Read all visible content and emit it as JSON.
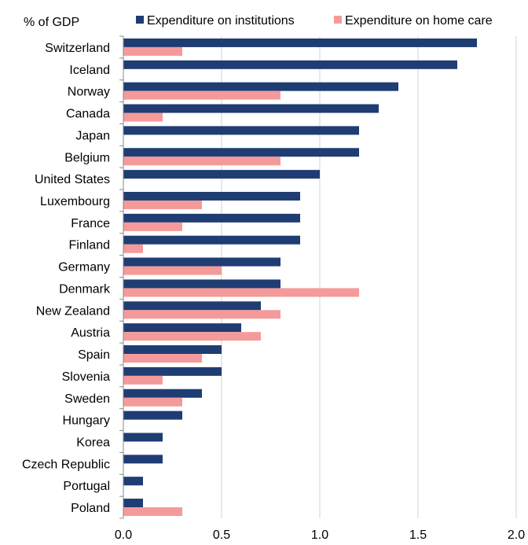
{
  "chart_data": {
    "type": "bar",
    "orientation": "horizontal",
    "ylabel": "% of GDP",
    "categories": [
      "Switzerland",
      "Iceland",
      "Norway",
      "Canada",
      "Japan",
      "Belgium",
      "United States",
      "Luxembourg",
      "France",
      "Finland",
      "Germany",
      "Denmark",
      "New Zealand",
      "Austria",
      "Spain",
      "Slovenia",
      "Sweden",
      "Hungary",
      "Korea",
      "Czech Republic",
      "Portugal",
      "Poland"
    ],
    "series": [
      {
        "name": "Expenditure on institutions",
        "color": "#1f3d73",
        "values": [
          1.8,
          1.7,
          1.4,
          1.3,
          1.2,
          1.2,
          1.0,
          0.9,
          0.9,
          0.9,
          0.8,
          0.8,
          0.7,
          0.6,
          0.5,
          0.5,
          0.4,
          0.3,
          0.2,
          0.2,
          0.1,
          0.1
        ]
      },
      {
        "name": "Expenditure on home care",
        "color": "#f59a9a",
        "values": [
          0.3,
          0.0,
          0.8,
          0.2,
          0.0,
          0.8,
          0.0,
          0.4,
          0.3,
          0.1,
          0.5,
          1.2,
          0.8,
          0.7,
          0.4,
          0.2,
          0.3,
          0.0,
          0.0,
          0.0,
          0.0,
          0.3
        ]
      }
    ],
    "xlim": [
      0,
      2.0
    ],
    "xticks": [
      "0.0",
      "0.5",
      "1.0",
      "1.5",
      "2.0"
    ],
    "grid": "vertical",
    "legend_position": "top"
  }
}
